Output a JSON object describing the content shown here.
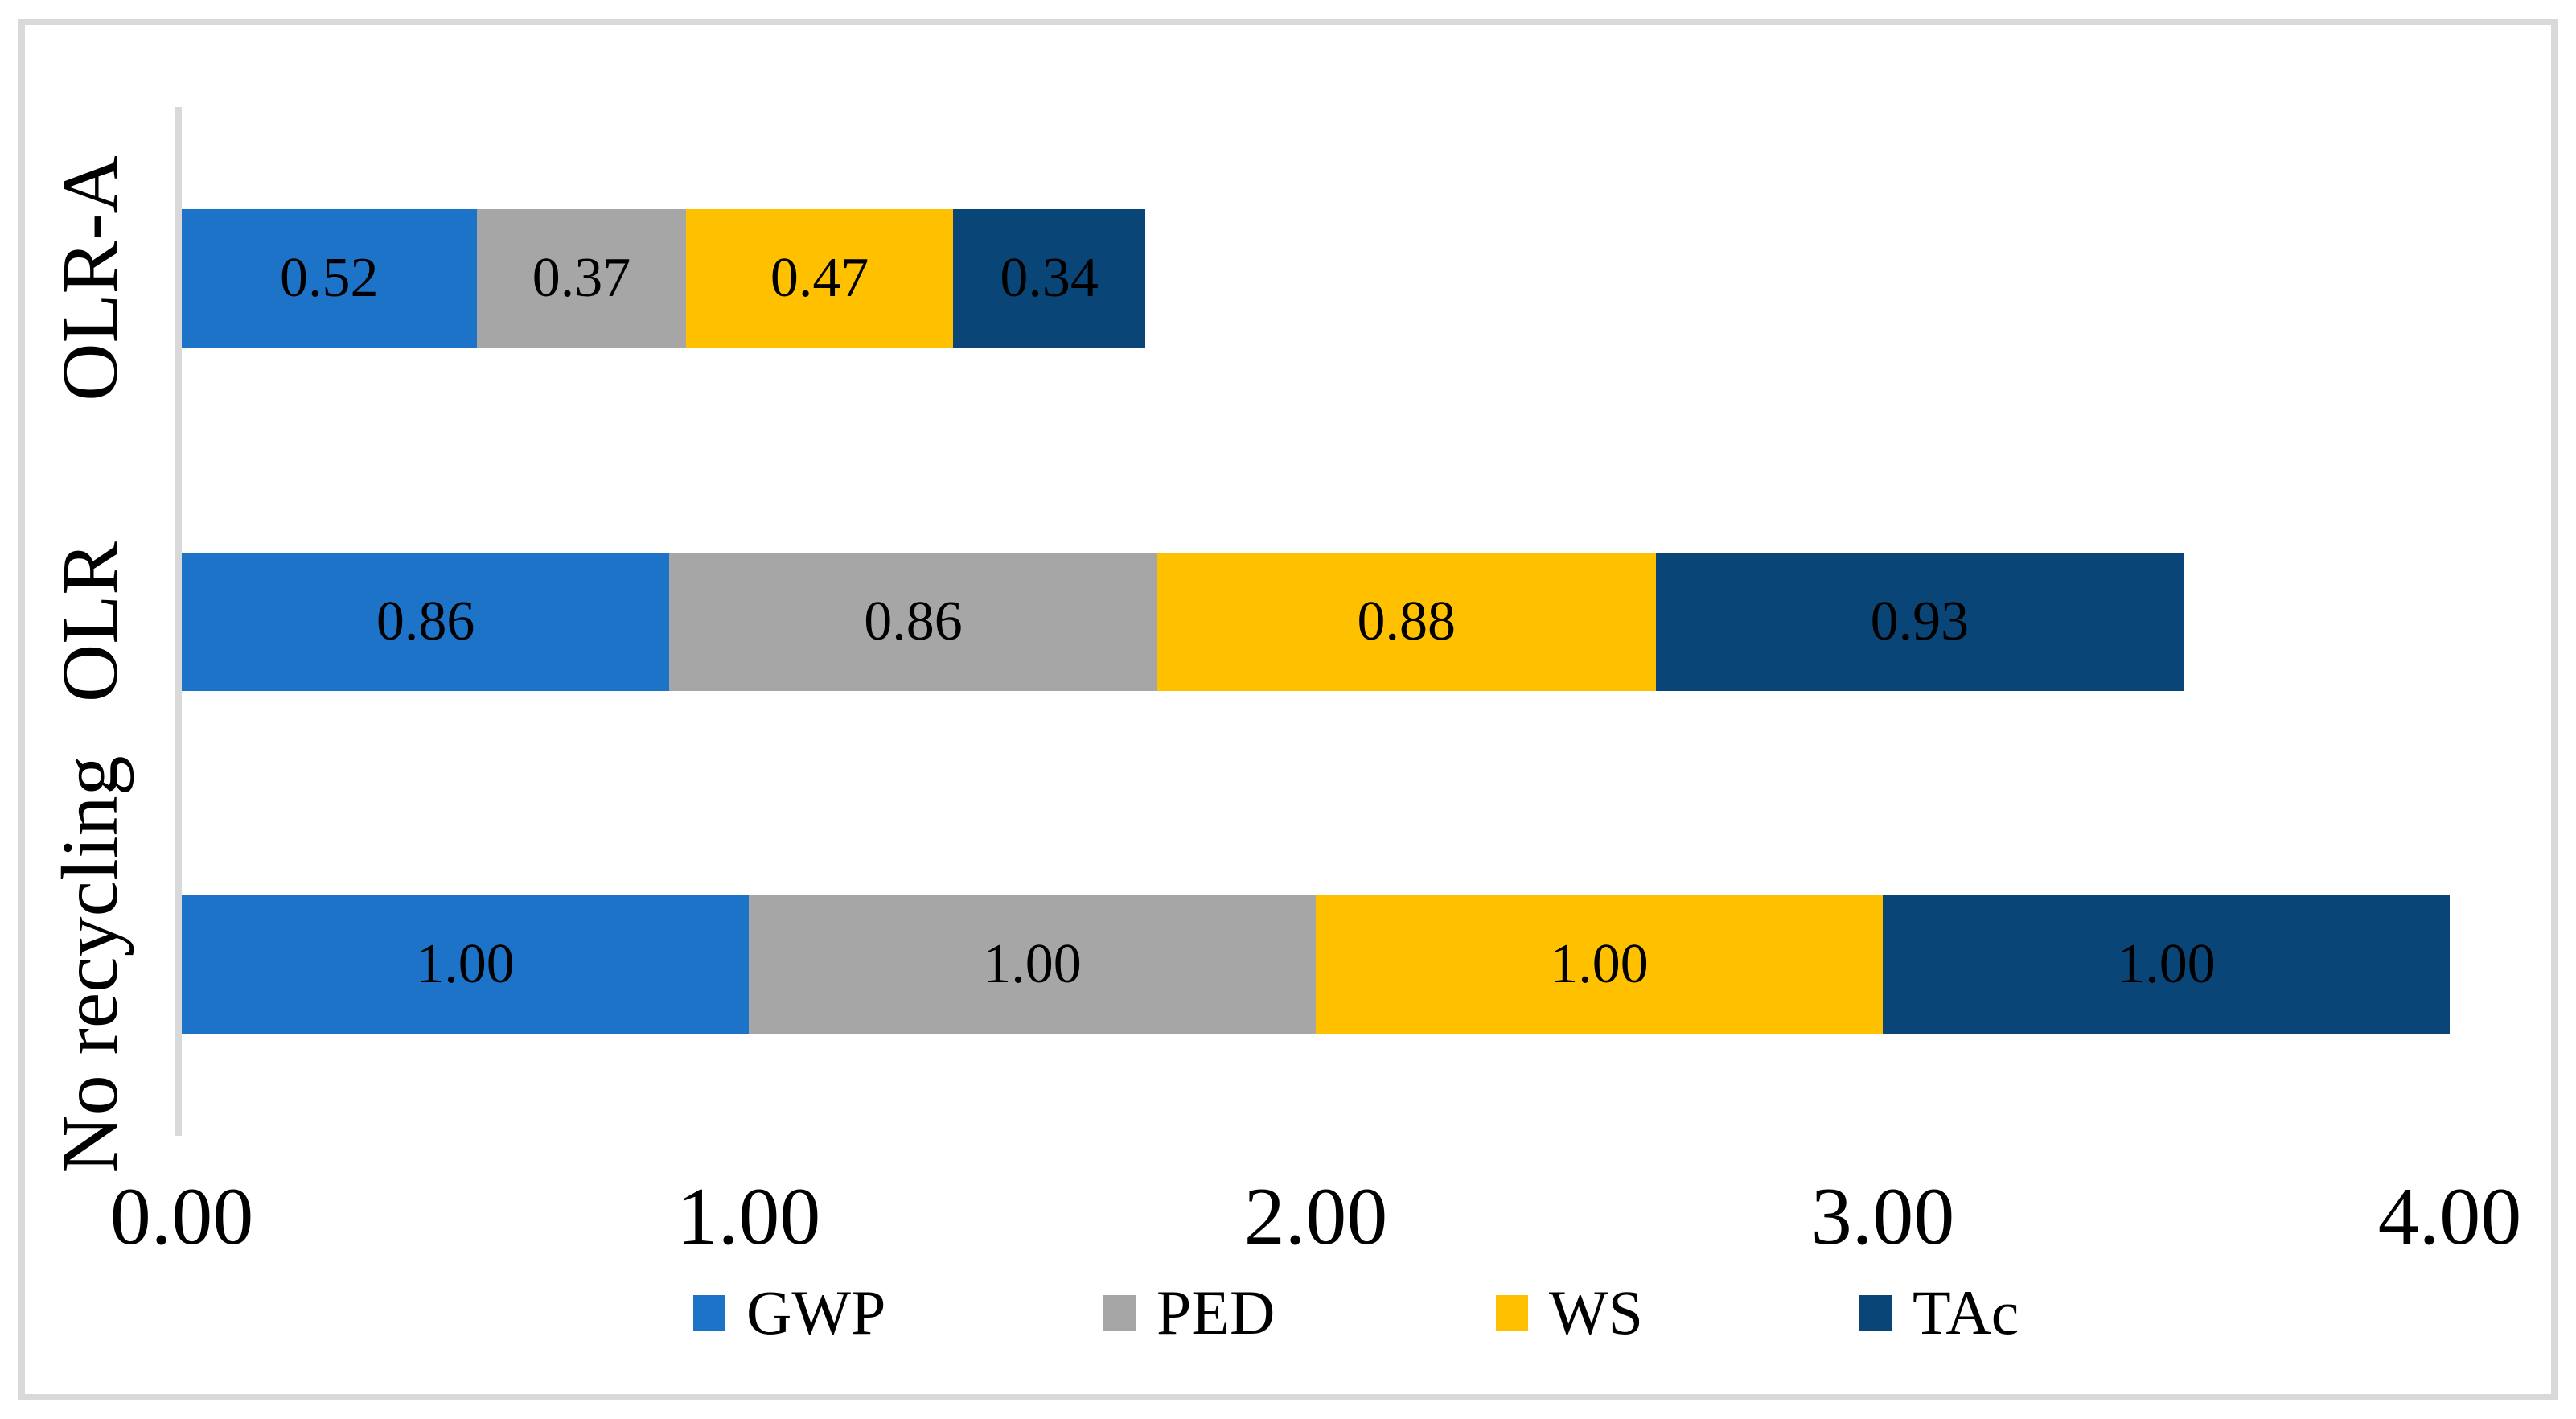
{
  "chart_data": {
    "type": "bar",
    "orientation": "horizontal",
    "stacked": true,
    "title": "",
    "xlabel": "",
    "ylabel": "",
    "xlim": [
      0,
      4
    ],
    "grid": false,
    "legend_position": "bottom",
    "categories": [
      "OLR-A",
      "OLR",
      "No recycling"
    ],
    "series": [
      {
        "name": "GWP",
        "color": "#1C73C8",
        "values": [
          0.52,
          0.86,
          1.0
        ]
      },
      {
        "name": "PED",
        "color": "#A6A6A6",
        "values": [
          0.37,
          0.86,
          1.0
        ]
      },
      {
        "name": "WS",
        "color": "#FFC000",
        "values": [
          0.47,
          0.88,
          1.0
        ]
      },
      {
        "name": "TAc",
        "color": "#0A4578",
        "values": [
          0.34,
          0.93,
          1.0
        ]
      }
    ],
    "value_labels": [
      [
        "0.52",
        "0.37",
        "0.47",
        "0.34"
      ],
      [
        "0.86",
        "0.86",
        "0.88",
        "0.93"
      ],
      [
        "1.00",
        "1.00",
        "1.00",
        "1.00"
      ]
    ],
    "x_ticks": [
      "0.00",
      "1.00",
      "2.00",
      "3.00",
      "4.00"
    ],
    "colors": {
      "axis_line": "#D9D9D9",
      "frame_border": "#D9D9D9",
      "label_text": "#000000",
      "background": "#FFFFFF"
    }
  }
}
